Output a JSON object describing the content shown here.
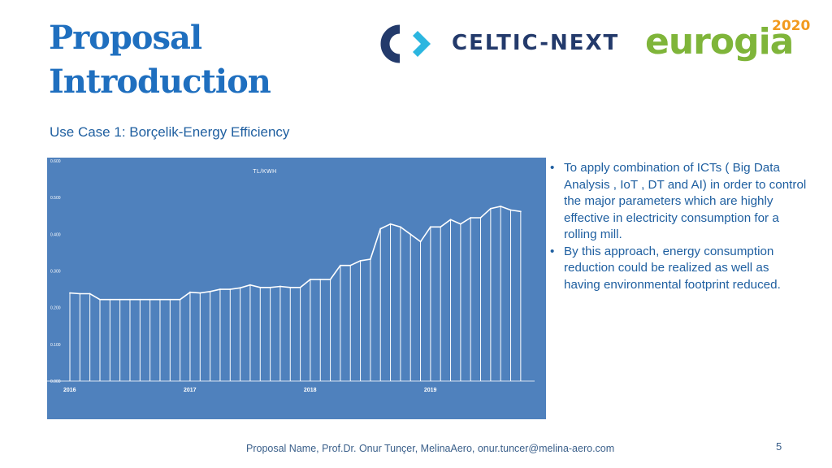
{
  "slide": {
    "title_line1": "Proposal",
    "title_line2": "Introduction",
    "subtitle": "Use Case 1: Borçelik-Energy Efficiency",
    "footer": "Proposal Name,  Prof.Dr. Onur Tunçer, MelinaAero, onur.tuncer@melina-aero.com",
    "page_number": "5"
  },
  "logos": {
    "celtic_next": "CELTIC-NEXT",
    "eurogia": "eurogia",
    "eurogia_year": "2020"
  },
  "bullets": [
    "To apply combination of ICTs ( Big Data Analysis , IoT , DT and AI) in order to control the major parameters which are highly effective in electricity consumption for a rolling mill.",
    "By this approach, energy consumption reduction could be realized as well as having environmental footprint reduced."
  ],
  "colors": {
    "title": "#1f6fbf",
    "chart_background": "#4f81bd",
    "chart_line": "#ffffff",
    "celtic_dark": "#233a6b",
    "celtic_accent": "#2bb6e0",
    "eurogia_green": "#7fb53a",
    "eurogia_orange": "#f29a1e"
  },
  "chart_data": {
    "type": "area",
    "title": "TL/KWH",
    "ylim": [
      0,
      0.6
    ],
    "yticks": [
      "0.000",
      "0.100",
      "0.200",
      "0.300",
      "0.400",
      "0.500",
      "0.600"
    ],
    "xticks": [
      {
        "label": "2016",
        "x": 0
      },
      {
        "label": "2017",
        "x": 12
      },
      {
        "label": "2018",
        "x": 24
      },
      {
        "label": "2019",
        "x": 36
      }
    ],
    "values": [
      0.24,
      0.238,
      0.238,
      0.222,
      0.222,
      0.222,
      0.222,
      0.222,
      0.222,
      0.222,
      0.222,
      0.222,
      0.242,
      0.24,
      0.244,
      0.25,
      0.25,
      0.254,
      0.262,
      0.255,
      0.255,
      0.258,
      0.255,
      0.255,
      0.277,
      0.277,
      0.277,
      0.315,
      0.315,
      0.328,
      0.332,
      0.415,
      0.428,
      0.42,
      0.4,
      0.38,
      0.42,
      0.42,
      0.44,
      0.428,
      0.445,
      0.445,
      0.47,
      0.476,
      0.466,
      0.462
    ],
    "grid": false
  }
}
